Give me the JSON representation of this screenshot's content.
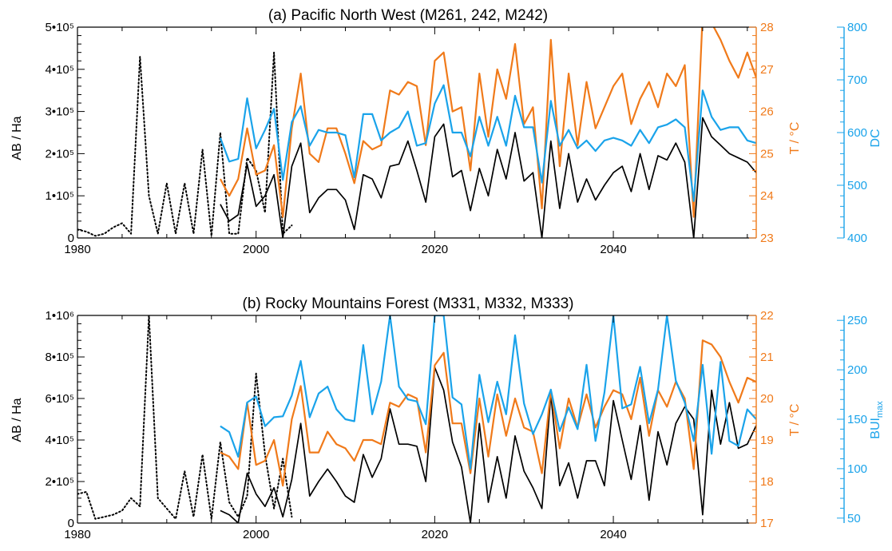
{
  "colors": {
    "black": "#000000",
    "orange": "#f07a1a",
    "blue": "#1aa3ea"
  },
  "chart_data": [
    {
      "type": "line",
      "title": "(a) Pacific North West (M261, 242, M242)",
      "xlim": [
        1980,
        2056
      ],
      "x_ticks": [
        "1980",
        "2000",
        "2020",
        "2040"
      ],
      "left_axis": {
        "label": "AB / Ha",
        "ylim": [
          0,
          500000
        ],
        "ticks": [
          "0",
          "1•10⁵",
          "2•10⁵",
          "3•10⁵",
          "4•10⁵",
          "5•10⁵"
        ],
        "tick_values": [
          0,
          100000,
          200000,
          300000,
          400000,
          500000
        ]
      },
      "right_axis_1": {
        "label": "T / °C",
        "ylim": [
          23,
          28
        ],
        "ticks": [
          "23",
          "24",
          "25",
          "26",
          "27",
          "28"
        ],
        "tick_values": [
          23,
          24,
          25,
          26,
          27,
          28
        ]
      },
      "right_axis_2": {
        "label": "DC",
        "ylim": [
          400,
          800
        ],
        "ticks": [
          "400",
          "500",
          "600",
          "700",
          "800"
        ],
        "tick_values": [
          400,
          500,
          600,
          700,
          800
        ]
      },
      "series": [
        {
          "axis": "left",
          "style": "dotted",
          "color": "black",
          "x": [
            1980,
            1981,
            1982,
            1983,
            1984,
            1985,
            1986,
            1987,
            1988,
            1989,
            1990,
            1991,
            1992,
            1993,
            1994,
            1995,
            1996,
            1997,
            1998,
            1999,
            2000,
            2001,
            2002,
            2003,
            2004
          ],
          "y": [
            20000,
            15000,
            5000,
            10000,
            25000,
            35000,
            10000,
            430000,
            100000,
            10000,
            130000,
            10000,
            130000,
            10000,
            210000,
            5000,
            250000,
            10000,
            10000,
            190000,
            160000,
            60000,
            440000,
            10000,
            30000
          ]
        },
        {
          "axis": "left",
          "style": "solid",
          "color": "black",
          "x": [
            1996,
            1997,
            1998,
            1999,
            2000,
            2001,
            2002,
            2003,
            2004,
            2005,
            2006,
            2007,
            2008,
            2009,
            2010,
            2011,
            2012,
            2013,
            2014,
            2015,
            2016,
            2017,
            2018,
            2019,
            2020,
            2021,
            2022,
            2023,
            2024,
            2025,
            2026,
            2027,
            2028,
            2029,
            2030,
            2031,
            2032,
            2033,
            2034,
            2035,
            2036,
            2037,
            2038,
            2039,
            2040,
            2041,
            2042,
            2043,
            2044,
            2045,
            2046,
            2047,
            2048,
            2049,
            2050,
            2051,
            2052,
            2053,
            2054,
            2055,
            2056
          ],
          "y": [
            80000,
            40000,
            55000,
            175000,
            75000,
            100000,
            150000,
            0,
            170000,
            225000,
            60000,
            95000,
            115000,
            115000,
            90000,
            20000,
            150000,
            140000,
            95000,
            170000,
            175000,
            230000,
            160000,
            85000,
            240000,
            270000,
            145000,
            160000,
            65000,
            165000,
            100000,
            210000,
            140000,
            250000,
            135000,
            155000,
            0,
            230000,
            70000,
            200000,
            85000,
            140000,
            90000,
            125000,
            155000,
            170000,
            110000,
            200000,
            115000,
            195000,
            185000,
            225000,
            180000,
            0,
            285000,
            240000,
            220000,
            200000,
            190000,
            180000,
            155000
          ]
        },
        {
          "axis": "right_1",
          "style": "solid",
          "color": "orange",
          "x": [
            1996,
            1997,
            1998,
            1999,
            2000,
            2001,
            2002,
            2003,
            2004,
            2005,
            2006,
            2007,
            2008,
            2009,
            2010,
            2011,
            2012,
            2013,
            2014,
            2015,
            2016,
            2017,
            2018,
            2019,
            2020,
            2021,
            2022,
            2023,
            2024,
            2025,
            2026,
            2027,
            2028,
            2029,
            2030,
            2031,
            2032,
            2033,
            2034,
            2035,
            2036,
            2037,
            2038,
            2039,
            2040,
            2041,
            2042,
            2043,
            2044,
            2045,
            2046,
            2047,
            2048,
            2049,
            2050,
            2051,
            2052,
            2053,
            2054,
            2055,
            2056
          ],
          "y": [
            24.4,
            24.0,
            24.4,
            25.6,
            24.5,
            24.6,
            25.2,
            23.5,
            25.6,
            26.9,
            25.0,
            24.8,
            25.6,
            25.6,
            25.0,
            24.3,
            25.3,
            25.1,
            25.2,
            26.5,
            26.4,
            26.7,
            26.6,
            25.2,
            27.2,
            27.4,
            26.0,
            26.1,
            24.6,
            26.9,
            25.4,
            27.0,
            26.3,
            27.6,
            25.7,
            26.1,
            23.7,
            27.7,
            24.7,
            26.9,
            25.2,
            26.7,
            25.6,
            26.1,
            26.6,
            26.9,
            25.7,
            26.3,
            26.7,
            26.1,
            26.9,
            26.6,
            27.1,
            23.5,
            28.3,
            28.1,
            27.7,
            27.2,
            26.8,
            27.4,
            26.8
          ]
        },
        {
          "axis": "right_2",
          "style": "solid",
          "color": "blue",
          "x": [
            1996,
            1997,
            1998,
            1999,
            2000,
            2001,
            2002,
            2003,
            2004,
            2005,
            2006,
            2007,
            2008,
            2009,
            2010,
            2011,
            2012,
            2013,
            2014,
            2015,
            2016,
            2017,
            2018,
            2019,
            2020,
            2021,
            2022,
            2023,
            2024,
            2025,
            2026,
            2027,
            2028,
            2029,
            2030,
            2031,
            2032,
            2033,
            2034,
            2035,
            2036,
            2037,
            2038,
            2039,
            2040,
            2041,
            2042,
            2043,
            2044,
            2045,
            2046,
            2047,
            2048,
            2049,
            2050,
            2051,
            2052,
            2053,
            2054,
            2055,
            2056
          ],
          "y": [
            590,
            545,
            550,
            665,
            570,
            605,
            645,
            510,
            620,
            650,
            575,
            605,
            600,
            600,
            595,
            515,
            635,
            635,
            585,
            600,
            610,
            640,
            575,
            580,
            655,
            690,
            600,
            600,
            555,
            630,
            575,
            630,
            575,
            670,
            610,
            610,
            505,
            660,
            575,
            605,
            570,
            585,
            565,
            585,
            590,
            585,
            575,
            605,
            580,
            610,
            615,
            625,
            610,
            470,
            680,
            630,
            605,
            610,
            610,
            585,
            580
          ]
        }
      ]
    },
    {
      "type": "line",
      "title": "(b) Rocky Mountains Forest (M331, M332, M333)",
      "xlim": [
        1980,
        2056
      ],
      "x_ticks": [
        "1980",
        "2000",
        "2020",
        "2040"
      ],
      "left_axis": {
        "label": "AB / Ha",
        "ylim": [
          0,
          1000000
        ],
        "ticks": [
          "0",
          "2•10⁵",
          "4•10⁵",
          "6•10⁵",
          "8•10⁵",
          "1•10⁶"
        ],
        "tick_values": [
          0,
          200000,
          400000,
          600000,
          800000,
          1000000
        ]
      },
      "right_axis_1": {
        "label": "T / °C",
        "ylim": [
          17,
          22
        ],
        "ticks": [
          "17",
          "18",
          "19",
          "20",
          "21",
          "22"
        ],
        "tick_values": [
          17,
          18,
          19,
          20,
          21,
          22
        ]
      },
      "right_axis_2": {
        "label": "BUI",
        "label_sub": "max",
        "ylim": [
          45,
          255
        ],
        "ticks": [
          "50",
          "100",
          "150",
          "200",
          "250"
        ],
        "tick_values": [
          50,
          100,
          150,
          200,
          250
        ]
      },
      "series": [
        {
          "axis": "left",
          "style": "dotted",
          "color": "black",
          "x": [
            1980,
            1981,
            1982,
            1983,
            1984,
            1985,
            1986,
            1987,
            1988,
            1989,
            1990,
            1991,
            1992,
            1993,
            1994,
            1995,
            1996,
            1997,
            1998,
            1999,
            2000,
            2001,
            2002,
            2003,
            2004
          ],
          "y": [
            140000,
            150000,
            20000,
            30000,
            40000,
            60000,
            120000,
            80000,
            1000000,
            120000,
            70000,
            20000,
            250000,
            30000,
            330000,
            20000,
            390000,
            100000,
            30000,
            130000,
            720000,
            330000,
            70000,
            310000,
            30000
          ]
        },
        {
          "axis": "left",
          "style": "solid",
          "color": "black",
          "x": [
            1996,
            1997,
            1998,
            1999,
            2000,
            2001,
            2002,
            2003,
            2004,
            2005,
            2006,
            2007,
            2008,
            2009,
            2010,
            2011,
            2012,
            2013,
            2014,
            2015,
            2016,
            2017,
            2018,
            2019,
            2020,
            2021,
            2022,
            2023,
            2024,
            2025,
            2026,
            2027,
            2028,
            2029,
            2030,
            2031,
            2032,
            2033,
            2034,
            2035,
            2036,
            2037,
            2038,
            2039,
            2040,
            2041,
            2042,
            2043,
            2044,
            2045,
            2046,
            2047,
            2048,
            2049,
            2050,
            2051,
            2052,
            2053,
            2054,
            2055,
            2056
          ],
          "y": [
            60000,
            40000,
            0,
            240000,
            140000,
            80000,
            170000,
            30000,
            210000,
            480000,
            130000,
            200000,
            260000,
            200000,
            130000,
            100000,
            330000,
            220000,
            310000,
            550000,
            380000,
            380000,
            370000,
            200000,
            750000,
            640000,
            390000,
            270000,
            0,
            480000,
            100000,
            320000,
            120000,
            420000,
            250000,
            170000,
            70000,
            620000,
            180000,
            290000,
            120000,
            300000,
            300000,
            180000,
            590000,
            400000,
            210000,
            470000,
            110000,
            440000,
            280000,
            480000,
            560000,
            500000,
            40000,
            640000,
            380000,
            580000,
            360000,
            380000,
            470000
          ]
        },
        {
          "axis": "right_1",
          "style": "solid",
          "color": "orange",
          "x": [
            1996,
            1997,
            1998,
            1999,
            2000,
            2001,
            2002,
            2003,
            2004,
            2005,
            2006,
            2007,
            2008,
            2009,
            2010,
            2011,
            2012,
            2013,
            2014,
            2015,
            2016,
            2017,
            2018,
            2019,
            2020,
            2021,
            2022,
            2023,
            2024,
            2025,
            2026,
            2027,
            2028,
            2029,
            2030,
            2031,
            2032,
            2033,
            2034,
            2035,
            2036,
            2037,
            2038,
            2039,
            2040,
            2041,
            2042,
            2043,
            2044,
            2045,
            2046,
            2047,
            2048,
            2049,
            2050,
            2051,
            2052,
            2053,
            2054,
            2055,
            2056
          ],
          "y": [
            18.7,
            18.6,
            18.3,
            19.9,
            18.4,
            18.5,
            19.0,
            17.9,
            19.5,
            20.3,
            18.7,
            18.7,
            19.2,
            18.9,
            18.8,
            18.5,
            19.0,
            19.0,
            18.9,
            19.9,
            19.8,
            20.1,
            20.0,
            18.7,
            20.8,
            21.1,
            19.4,
            19.4,
            18.2,
            20.0,
            18.6,
            20.1,
            19.1,
            20.0,
            19.3,
            19.2,
            18.2,
            20.2,
            18.8,
            20.0,
            19.3,
            20.1,
            19.3,
            19.8,
            20.2,
            20.1,
            19.5,
            20.5,
            19.1,
            20.2,
            19.8,
            20.4,
            20.0,
            18.3,
            21.4,
            21.3,
            21.0,
            20.4,
            19.9,
            20.5,
            20.4
          ]
        },
        {
          "axis": "right_2",
          "style": "solid",
          "color": "blue",
          "x": [
            1996,
            1997,
            1998,
            1999,
            2000,
            2001,
            2002,
            2003,
            2004,
            2005,
            2006,
            2007,
            2008,
            2009,
            2010,
            2011,
            2012,
            2013,
            2014,
            2015,
            2016,
            2017,
            2018,
            2019,
            2020,
            2021,
            2022,
            2023,
            2024,
            2025,
            2026,
            2027,
            2028,
            2029,
            2030,
            2031,
            2032,
            2033,
            2034,
            2035,
            2036,
            2037,
            2038,
            2039,
            2040,
            2041,
            2042,
            2043,
            2044,
            2045,
            2046,
            2047,
            2048,
            2049,
            2050,
            2051,
            2052,
            2053,
            2054,
            2055,
            2056
          ],
          "y": [
            143,
            137,
            112,
            167,
            173,
            143,
            152,
            153,
            174,
            209,
            152,
            176,
            183,
            160,
            150,
            148,
            225,
            155,
            188,
            255,
            183,
            170,
            168,
            145,
            255,
            255,
            172,
            165,
            100,
            195,
            147,
            188,
            155,
            235,
            166,
            135,
            155,
            180,
            138,
            162,
            140,
            205,
            128,
            177,
            255,
            161,
            165,
            203,
            146,
            180,
            255,
            189,
            167,
            128,
            205,
            115,
            208,
            128,
            123,
            160,
            150
          ]
        }
      ]
    }
  ]
}
